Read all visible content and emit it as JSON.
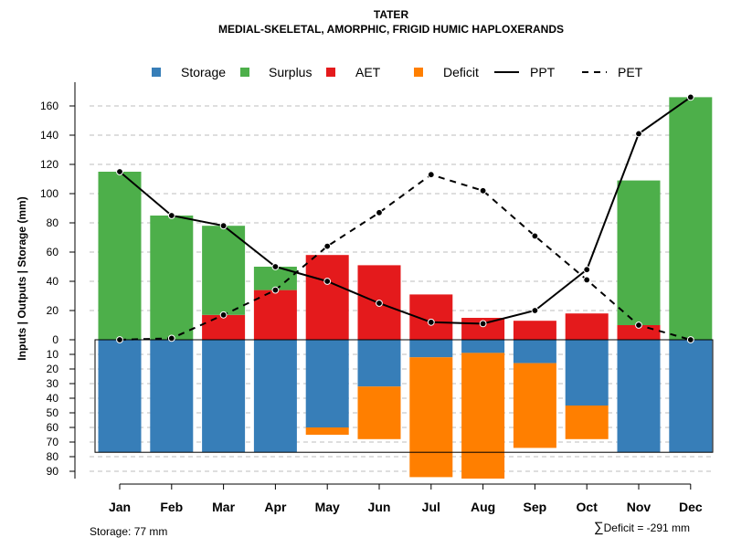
{
  "chart_data": {
    "type": "bar",
    "title": "TATER",
    "subtitle": "MEDIAL-SKELETAL, AMORPHIC, FRIGID HUMIC HAPLOXERANDS",
    "ylabel": "Inputs | Outputs | Storage    (mm)",
    "categories": [
      "Jan",
      "Feb",
      "Mar",
      "Apr",
      "May",
      "Jun",
      "Jul",
      "Aug",
      "Sep",
      "Oct",
      "Nov",
      "Dec"
    ],
    "upper_ticks": [
      "0",
      "20",
      "40",
      "60",
      "80",
      "100",
      "120",
      "140",
      "160"
    ],
    "lower_ticks": [
      "10",
      "20",
      "30",
      "40",
      "50",
      "60",
      "70",
      "80",
      "90"
    ],
    "ylim_upper": [
      0,
      170
    ],
    "ylim_lower": [
      0,
      95
    ],
    "series": [
      {
        "name": "Storage",
        "color": "#377EB8",
        "position": "below",
        "values": [
          77,
          77,
          77,
          77,
          60,
          32,
          12,
          9,
          16,
          45,
          77,
          77
        ]
      },
      {
        "name": "Surplus",
        "color": "#4DAF4A",
        "position": "above",
        "values": [
          115,
          85,
          61,
          16,
          0,
          0,
          0,
          0,
          0,
          0,
          99,
          166
        ]
      },
      {
        "name": "AET",
        "color": "#E41A1C",
        "position": "above",
        "values": [
          0,
          0,
          17,
          34,
          58,
          51,
          31,
          15,
          13,
          18,
          10,
          0
        ]
      },
      {
        "name": "Deficit",
        "color": "#FF7F00",
        "position": "below",
        "values": [
          0,
          0,
          0,
          0,
          5,
          36,
          82,
          86,
          58,
          23,
          0,
          0
        ]
      },
      {
        "name": "PPT",
        "color": "#000000",
        "style": "solid",
        "values": [
          115,
          85,
          78,
          50,
          40,
          25,
          12,
          11,
          20,
          48,
          141,
          166
        ]
      },
      {
        "name": "PET",
        "color": "#000000",
        "style": "dashed",
        "values": [
          0,
          1,
          17,
          34,
          64,
          87,
          113,
          102,
          71,
          41,
          10,
          0
        ]
      }
    ],
    "storage_capacity": 77,
    "legend_position": "top",
    "grid": true
  },
  "footer": {
    "storage_text": "Storage: 77 mm",
    "deficit_symbol": "∑",
    "deficit_text": "Deficit = -291 mm"
  }
}
